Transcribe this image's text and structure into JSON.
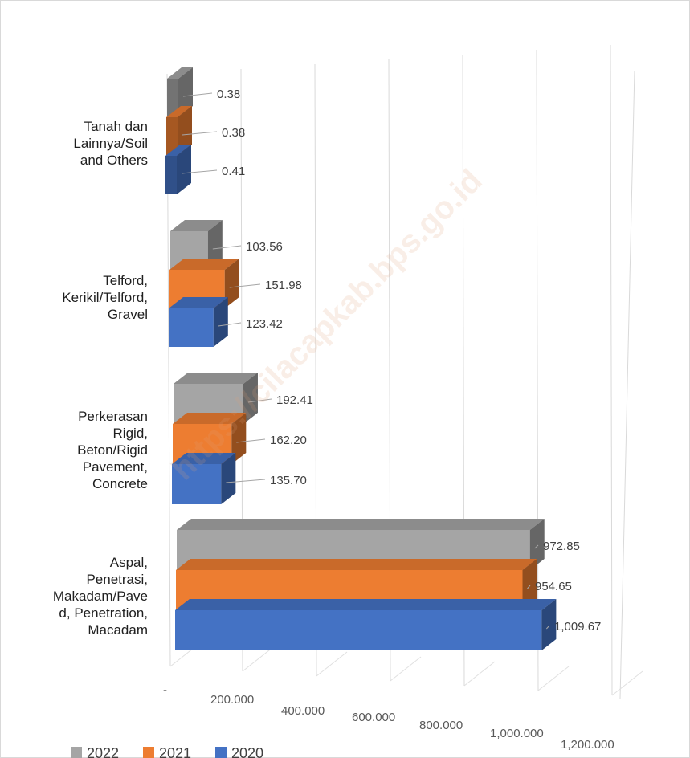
{
  "chart_data": {
    "type": "bar",
    "orientation": "horizontal",
    "style": "3d-clustered",
    "categories": [
      "Tanah dan Lainnya/Soil and Others",
      "Telford, Kerikil/Telford, Gravel",
      "Perkerasan Rigid, Beton/Rigid Pavement, Concrete",
      "Aspal, Penetrasi, Makadam/Paved, Penetration, Macadam"
    ],
    "category_lines": [
      [
        "Tanah dan",
        "Lainnya/Soil",
        "and Others"
      ],
      [
        "Telford,",
        "Kerikil/Telford,",
        "Gravel"
      ],
      [
        "Perkerasan",
        "Rigid,",
        "Beton/Rigid",
        "Pavement,",
        "Concrete"
      ],
      [
        "Aspal,",
        "Penetrasi,",
        "Makadam/Pave",
        "d, Penetration,",
        "Macadam"
      ]
    ],
    "series": [
      {
        "name": "2022",
        "color": "#a5a5a5",
        "values": [
          0.38,
          103.56,
          192.41,
          972.85
        ],
        "labels": [
          "0.38",
          "103.56",
          "192.41",
          "972.85"
        ]
      },
      {
        "name": "2021",
        "color": "#ed7d31",
        "values": [
          0.38,
          151.98,
          162.2,
          954.65
        ],
        "labels": [
          "0.38",
          "151.98",
          "162.20",
          "954.65"
        ]
      },
      {
        "name": "2020",
        "color": "#4472c4",
        "values": [
          0.41,
          123.42,
          135.7,
          1009.67
        ],
        "labels": [
          "0.41",
          "123.42",
          "135.70",
          "1,009.67"
        ]
      }
    ],
    "xlim": [
      0,
      1200
    ],
    "x_ticks": [
      0,
      200,
      400,
      600,
      800,
      1000,
      1200
    ],
    "x_tick_labels": [
      "-",
      "200.000",
      "400.000",
      "600.000",
      "800.000",
      "1,000.000",
      "1,200.000"
    ],
    "legend_position": "bottom-left",
    "grid": true,
    "watermark": "https://cilacapkab.bps.go.id"
  }
}
